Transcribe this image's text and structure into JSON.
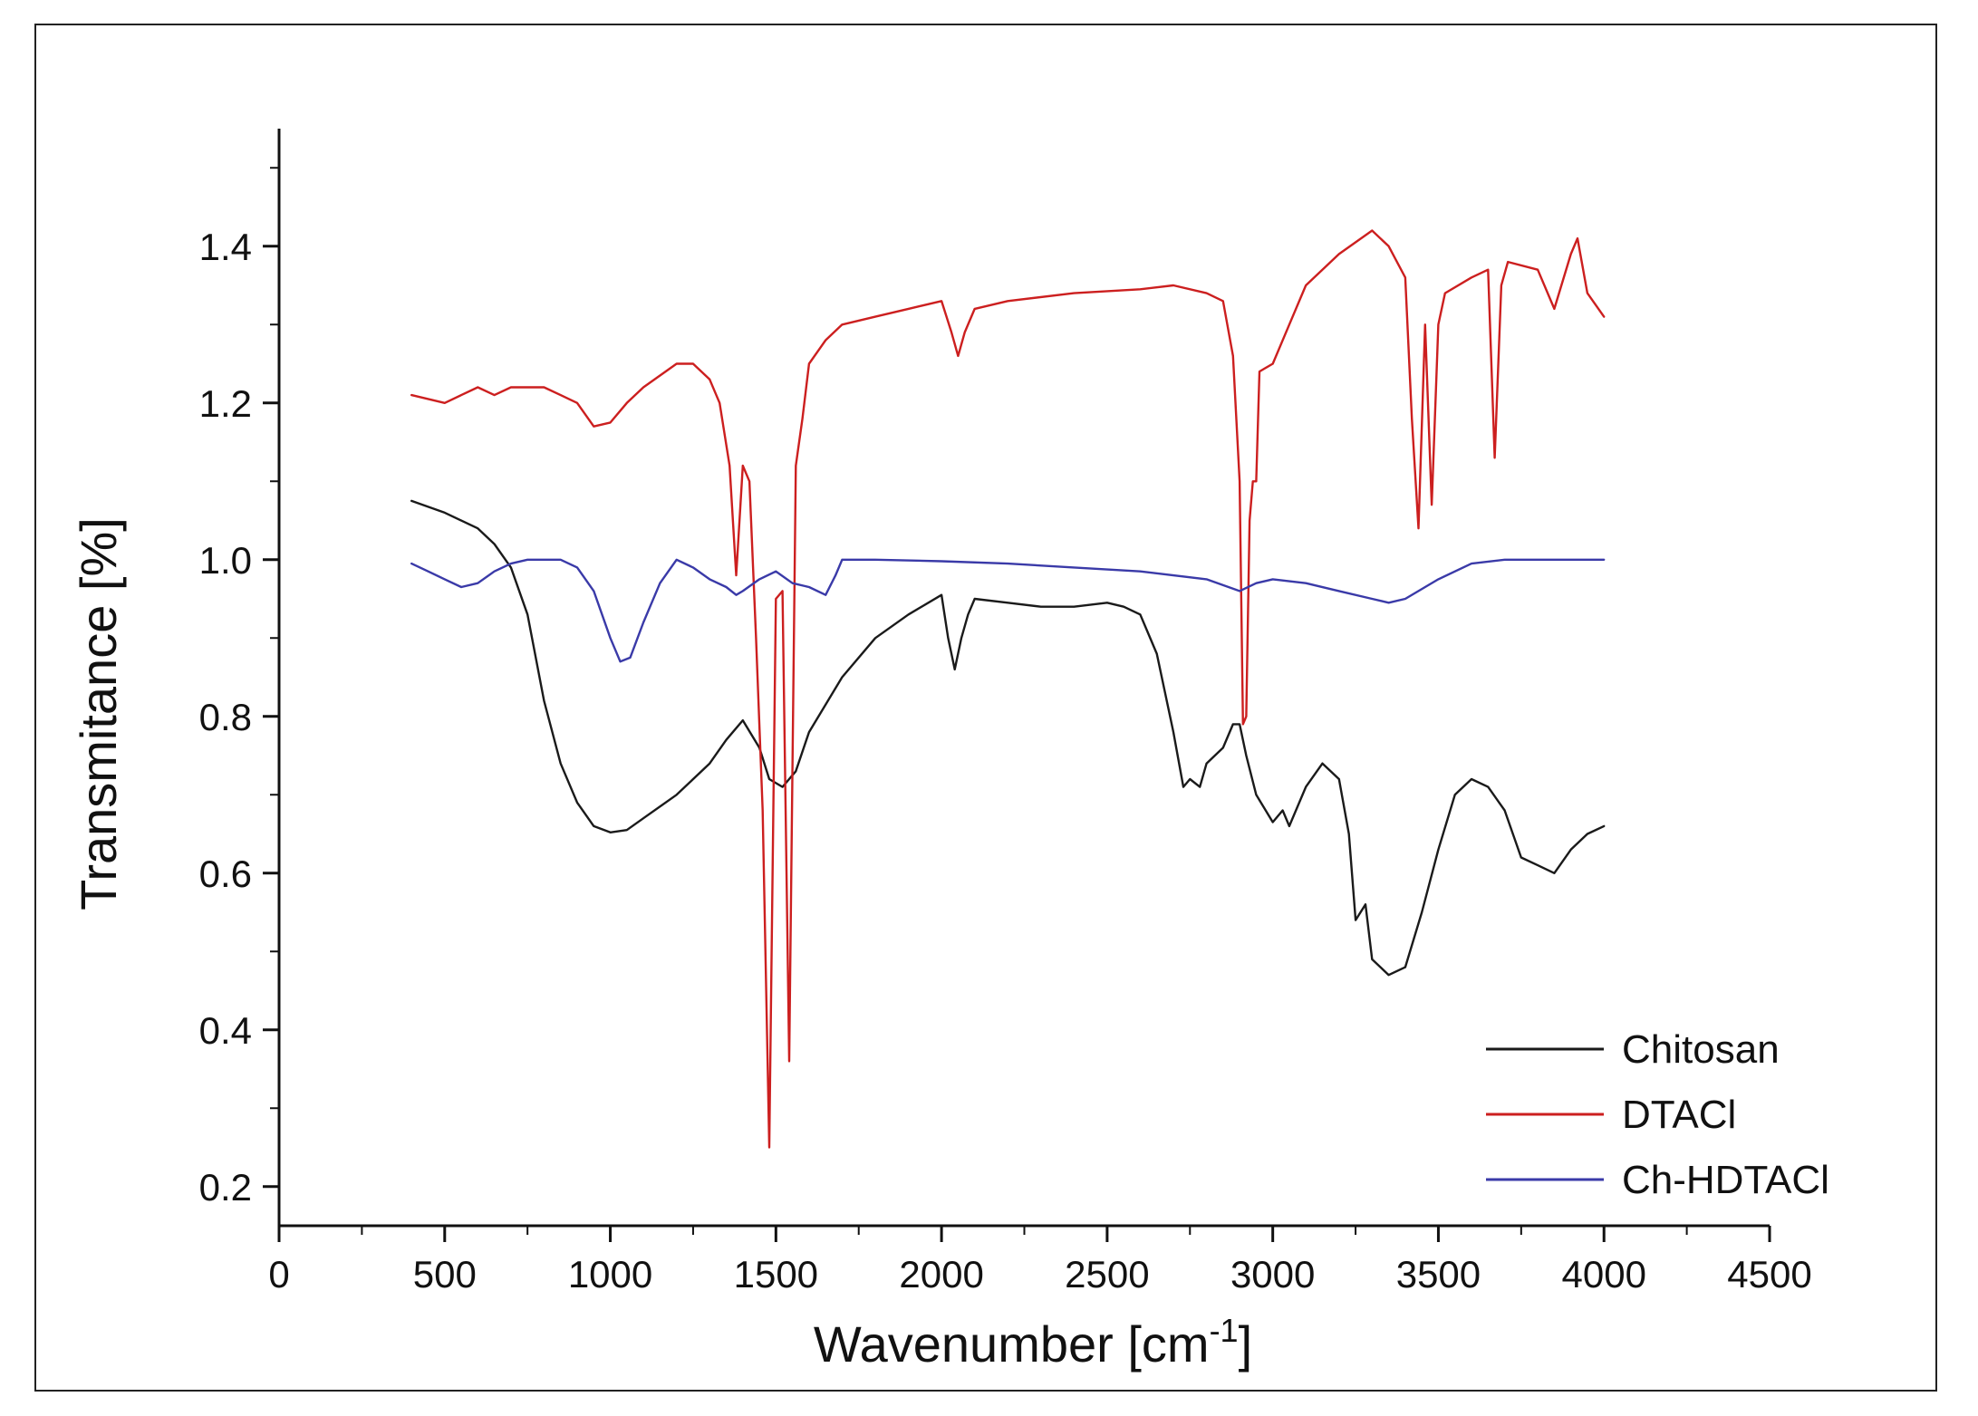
{
  "chart_data": {
    "type": "line",
    "title": "",
    "xlabel": "Wavenumber [cm",
    "xlabel_sup": "-1",
    "xlabel_close": "]",
    "ylabel": "Transmitance [%]",
    "xlim": [
      0,
      4500
    ],
    "ylim": [
      0.15,
      1.55
    ],
    "xticks": [
      0,
      500,
      1000,
      1500,
      2000,
      2500,
      3000,
      3500,
      4000,
      4500
    ],
    "xtick_labels": [
      "0",
      "500",
      "1000",
      "1500",
      "2000",
      "2500",
      "3000",
      "3500",
      "4000",
      "4500"
    ],
    "yticks": [
      0.2,
      0.4,
      0.6,
      0.8,
      1.0,
      1.2,
      1.4
    ],
    "ytick_labels": [
      "0.2",
      "0.4",
      "0.6",
      "0.8",
      "1.0",
      "1.2",
      "1.4"
    ],
    "grid": false,
    "legend_position": "bottom-right",
    "series": [
      {
        "name": "Chitosan",
        "color": "#1a1a1a",
        "x": [
          400,
          500,
          600,
          650,
          700,
          750,
          800,
          850,
          900,
          950,
          1000,
          1050,
          1100,
          1200,
          1300,
          1350,
          1400,
          1450,
          1480,
          1520,
          1560,
          1600,
          1700,
          1800,
          1900,
          2000,
          2020,
          2040,
          2060,
          2080,
          2100,
          2200,
          2300,
          2400,
          2500,
          2550,
          2600,
          2650,
          2700,
          2730,
          2750,
          2780,
          2800,
          2850,
          2880,
          2900,
          2920,
          2950,
          3000,
          3030,
          3050,
          3100,
          3150,
          3200,
          3230,
          3250,
          3280,
          3300,
          3350,
          3400,
          3450,
          3500,
          3550,
          3600,
          3650,
          3700,
          3750,
          3800,
          3850,
          3900,
          3950,
          4000
        ],
        "values": [
          1.075,
          1.06,
          1.04,
          1.02,
          0.99,
          0.93,
          0.82,
          0.74,
          0.69,
          0.66,
          0.652,
          0.655,
          0.67,
          0.7,
          0.74,
          0.77,
          0.795,
          0.76,
          0.72,
          0.71,
          0.73,
          0.78,
          0.85,
          0.9,
          0.93,
          0.955,
          0.9,
          0.86,
          0.9,
          0.93,
          0.95,
          0.945,
          0.94,
          0.94,
          0.945,
          0.94,
          0.93,
          0.88,
          0.78,
          0.71,
          0.72,
          0.71,
          0.74,
          0.76,
          0.79,
          0.79,
          0.75,
          0.7,
          0.665,
          0.68,
          0.66,
          0.71,
          0.74,
          0.72,
          0.65,
          0.54,
          0.56,
          0.49,
          0.47,
          0.48,
          0.55,
          0.63,
          0.7,
          0.72,
          0.71,
          0.68,
          0.62,
          0.61,
          0.6,
          0.63,
          0.65,
          0.66
        ]
      },
      {
        "name": "DTACl",
        "color": "#cc1f1f",
        "x": [
          400,
          450,
          500,
          550,
          600,
          650,
          700,
          750,
          800,
          850,
          900,
          950,
          1000,
          1050,
          1100,
          1200,
          1250,
          1300,
          1330,
          1360,
          1380,
          1400,
          1420,
          1440,
          1460,
          1480,
          1500,
          1520,
          1540,
          1560,
          1580,
          1600,
          1650,
          1700,
          1800,
          1900,
          2000,
          2030,
          2050,
          2070,
          2100,
          2200,
          2400,
          2600,
          2700,
          2800,
          2850,
          2880,
          2900,
          2910,
          2920,
          2930,
          2940,
          2950,
          2960,
          3000,
          3050,
          3100,
          3200,
          3300,
          3350,
          3400,
          3420,
          3440,
          3460,
          3480,
          3500,
          3520,
          3600,
          3650,
          3670,
          3690,
          3710,
          3800,
          3850,
          3900,
          3920,
          3950,
          4000
        ],
        "values": [
          1.21,
          1.205,
          1.2,
          1.21,
          1.22,
          1.21,
          1.22,
          1.22,
          1.22,
          1.21,
          1.2,
          1.17,
          1.175,
          1.2,
          1.22,
          1.25,
          1.25,
          1.23,
          1.2,
          1.12,
          0.98,
          1.12,
          1.1,
          0.9,
          0.68,
          0.25,
          0.95,
          0.96,
          0.36,
          1.12,
          1.18,
          1.25,
          1.28,
          1.3,
          1.31,
          1.32,
          1.33,
          1.29,
          1.26,
          1.29,
          1.32,
          1.33,
          1.34,
          1.345,
          1.35,
          1.34,
          1.33,
          1.26,
          1.1,
          0.79,
          0.8,
          1.05,
          1.1,
          1.1,
          1.24,
          1.25,
          1.3,
          1.35,
          1.39,
          1.42,
          1.4,
          1.36,
          1.18,
          1.04,
          1.3,
          1.07,
          1.3,
          1.34,
          1.36,
          1.37,
          1.13,
          1.35,
          1.38,
          1.37,
          1.32,
          1.39,
          1.41,
          1.34,
          1.31
        ]
      },
      {
        "name": "Ch-HDTACl",
        "color": "#3a3aa8",
        "x": [
          400,
          450,
          500,
          550,
          600,
          650,
          700,
          750,
          800,
          850,
          900,
          950,
          1000,
          1030,
          1060,
          1100,
          1150,
          1200,
          1250,
          1300,
          1350,
          1380,
          1400,
          1450,
          1500,
          1550,
          1600,
          1650,
          1680,
          1700,
          1800,
          2000,
          2200,
          2400,
          2600,
          2800,
          2900,
          2950,
          3000,
          3100,
          3200,
          3300,
          3350,
          3400,
          3500,
          3600,
          3700,
          3800,
          4000
        ],
        "values": [
          0.995,
          0.985,
          0.975,
          0.965,
          0.97,
          0.985,
          0.995,
          1.0,
          1.0,
          1.0,
          0.99,
          0.96,
          0.9,
          0.87,
          0.875,
          0.92,
          0.97,
          1.0,
          0.99,
          0.975,
          0.965,
          0.955,
          0.96,
          0.975,
          0.985,
          0.97,
          0.965,
          0.955,
          0.98,
          1.0,
          1.0,
          0.998,
          0.995,
          0.99,
          0.985,
          0.975,
          0.96,
          0.97,
          0.975,
          0.97,
          0.96,
          0.95,
          0.945,
          0.95,
          0.975,
          0.995,
          1.0,
          1.0,
          1.0
        ]
      }
    ]
  }
}
